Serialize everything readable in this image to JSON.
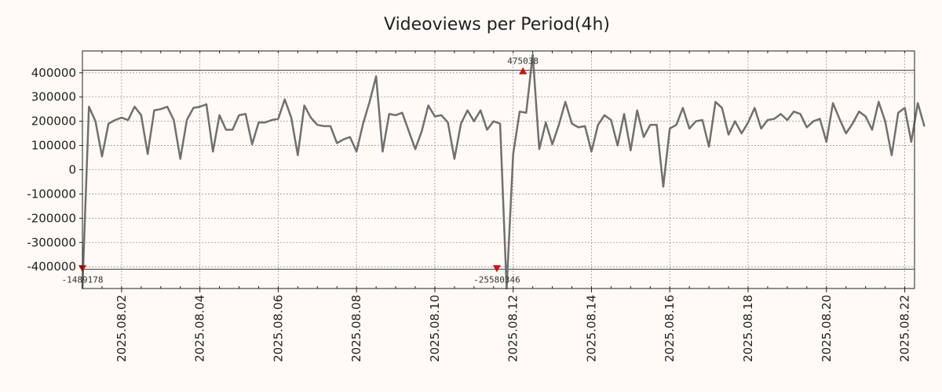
{
  "chart_data": {
    "type": "line",
    "title": "Videoviews per Period(4h)",
    "xlabel": "",
    "ylabel": "",
    "x_range": [
      "2025-08-01",
      "2025-08-22 06:00"
    ],
    "x_ticks": [
      "2025.08.02",
      "2025.08.04",
      "2025.08.06",
      "2025.08.08",
      "2025.08.10",
      "2025.08.12",
      "2025.08.14",
      "2025.08.16",
      "2025.08.18",
      "2025.08.20",
      "2025.08.22"
    ],
    "y_display_range": [
      -490000,
      490000
    ],
    "y_ticks": [
      -400000,
      -300000,
      -200000,
      -100000,
      0,
      100000,
      200000,
      300000,
      400000
    ],
    "y_tick_labels": [
      "-400000",
      "-300000",
      "-200000",
      "-100000",
      "0",
      "100000",
      "200000",
      "300000",
      "400000"
    ],
    "grid": true,
    "reference_lines": [
      410000,
      -410000
    ],
    "annotations": [
      {
        "label": "-1489178",
        "x": "2025-08-01 00:00",
        "y": -1489178,
        "direction": "down"
      },
      {
        "label": "-25580346",
        "x": "2025-08-11 14:00",
        "y": -25580346,
        "direction": "down"
      },
      {
        "label": "475038",
        "x": "2025-08-12 06:00",
        "y": 475038,
        "direction": "up"
      }
    ],
    "series": [
      {
        "color": "#707070",
        "points": [
          [
            "2025-08-01 00:00",
            -1489178
          ],
          [
            "2025-08-01 04:00",
            260000
          ],
          [
            "2025-08-01 08:00",
            200000
          ],
          [
            "2025-08-01 12:00",
            55000
          ],
          [
            "2025-08-01 16:00",
            190000
          ],
          [
            "2025-08-01 20:00",
            205000
          ],
          [
            "2025-08-02 00:00",
            215000
          ],
          [
            "2025-08-02 04:00",
            205000
          ],
          [
            "2025-08-02 08:00",
            260000
          ],
          [
            "2025-08-02 12:00",
            225000
          ],
          [
            "2025-08-02 16:00",
            65000
          ],
          [
            "2025-08-02 20:00",
            245000
          ],
          [
            "2025-08-03 00:00",
            250000
          ],
          [
            "2025-08-03 04:00",
            260000
          ],
          [
            "2025-08-03 08:00",
            205000
          ],
          [
            "2025-08-03 12:00",
            45000
          ],
          [
            "2025-08-03 16:00",
            205000
          ],
          [
            "2025-08-03 20:00",
            255000
          ],
          [
            "2025-08-04 00:00",
            260000
          ],
          [
            "2025-08-04 04:00",
            270000
          ],
          [
            "2025-08-04 08:00",
            75000
          ],
          [
            "2025-08-04 12:00",
            225000
          ],
          [
            "2025-08-04 16:00",
            165000
          ],
          [
            "2025-08-04 20:00",
            165000
          ],
          [
            "2025-08-05 00:00",
            225000
          ],
          [
            "2025-08-05 04:00",
            230000
          ],
          [
            "2025-08-05 08:00",
            105000
          ],
          [
            "2025-08-05 12:00",
            195000
          ],
          [
            "2025-08-05 16:00",
            195000
          ],
          [
            "2025-08-05 20:00",
            205000
          ],
          [
            "2025-08-06 00:00",
            210000
          ],
          [
            "2025-08-06 04:00",
            290000
          ],
          [
            "2025-08-06 08:00",
            215000
          ],
          [
            "2025-08-06 12:00",
            60000
          ],
          [
            "2025-08-06 16:00",
            265000
          ],
          [
            "2025-08-06 20:00",
            215000
          ],
          [
            "2025-08-07 00:00",
            185000
          ],
          [
            "2025-08-07 04:00",
            180000
          ],
          [
            "2025-08-07 08:00",
            180000
          ],
          [
            "2025-08-07 12:00",
            110000
          ],
          [
            "2025-08-07 16:00",
            125000
          ],
          [
            "2025-08-07 20:00",
            135000
          ],
          [
            "2025-08-08 00:00",
            75000
          ],
          [
            "2025-08-08 04:00",
            190000
          ],
          [
            "2025-08-08 08:00",
            280000
          ],
          [
            "2025-08-08 12:00",
            385000
          ],
          [
            "2025-08-08 16:00",
            75000
          ],
          [
            "2025-08-08 20:00",
            230000
          ],
          [
            "2025-08-09 00:00",
            225000
          ],
          [
            "2025-08-09 04:00",
            235000
          ],
          [
            "2025-08-09 08:00",
            160000
          ],
          [
            "2025-08-09 12:00",
            85000
          ],
          [
            "2025-08-09 16:00",
            160000
          ],
          [
            "2025-08-09 20:00",
            265000
          ],
          [
            "2025-08-10 00:00",
            220000
          ],
          [
            "2025-08-10 04:00",
            225000
          ],
          [
            "2025-08-10 08:00",
            195000
          ],
          [
            "2025-08-10 12:00",
            45000
          ],
          [
            "2025-08-10 16:00",
            190000
          ],
          [
            "2025-08-10 20:00",
            245000
          ],
          [
            "2025-08-11 00:00",
            200000
          ],
          [
            "2025-08-11 04:00",
            245000
          ],
          [
            "2025-08-11 08:00",
            165000
          ],
          [
            "2025-08-11 12:00",
            200000
          ],
          [
            "2025-08-11 16:00",
            190000
          ],
          [
            "2025-08-11 20:00",
            -25580346
          ],
          [
            "2025-08-12 00:00",
            65000
          ],
          [
            "2025-08-12 04:00",
            240000
          ],
          [
            "2025-08-12 08:00",
            235000
          ],
          [
            "2025-08-12 12:00",
            475038
          ],
          [
            "2025-08-12 16:00",
            85000
          ],
          [
            "2025-08-12 20:00",
            195000
          ],
          [
            "2025-08-13 00:00",
            105000
          ],
          [
            "2025-08-13 04:00",
            185000
          ],
          [
            "2025-08-13 08:00",
            280000
          ],
          [
            "2025-08-13 12:00",
            190000
          ],
          [
            "2025-08-13 16:00",
            175000
          ],
          [
            "2025-08-13 20:00",
            180000
          ],
          [
            "2025-08-14 00:00",
            75000
          ],
          [
            "2025-08-14 04:00",
            185000
          ],
          [
            "2025-08-14 08:00",
            225000
          ],
          [
            "2025-08-14 12:00",
            205000
          ],
          [
            "2025-08-14 16:00",
            100000
          ],
          [
            "2025-08-14 20:00",
            230000
          ],
          [
            "2025-08-15 00:00",
            80000
          ],
          [
            "2025-08-15 04:00",
            245000
          ],
          [
            "2025-08-15 08:00",
            135000
          ],
          [
            "2025-08-15 12:00",
            185000
          ],
          [
            "2025-08-15 16:00",
            185000
          ],
          [
            "2025-08-15 20:00",
            -70000
          ],
          [
            "2025-08-16 00:00",
            170000
          ],
          [
            "2025-08-16 04:00",
            185000
          ],
          [
            "2025-08-16 08:00",
            255000
          ],
          [
            "2025-08-16 12:00",
            170000
          ],
          [
            "2025-08-16 16:00",
            200000
          ],
          [
            "2025-08-16 20:00",
            205000
          ],
          [
            "2025-08-17 00:00",
            95000
          ],
          [
            "2025-08-17 04:00",
            280000
          ],
          [
            "2025-08-17 08:00",
            255000
          ],
          [
            "2025-08-17 12:00",
            145000
          ],
          [
            "2025-08-17 16:00",
            200000
          ],
          [
            "2025-08-17 20:00",
            150000
          ],
          [
            "2025-08-18 00:00",
            195000
          ],
          [
            "2025-08-18 04:00",
            255000
          ],
          [
            "2025-08-18 08:00",
            170000
          ],
          [
            "2025-08-18 12:00",
            205000
          ],
          [
            "2025-08-18 16:00",
            210000
          ],
          [
            "2025-08-18 20:00",
            230000
          ],
          [
            "2025-08-19 00:00",
            205000
          ],
          [
            "2025-08-19 04:00",
            240000
          ],
          [
            "2025-08-19 08:00",
            230000
          ],
          [
            "2025-08-19 12:00",
            175000
          ],
          [
            "2025-08-19 16:00",
            200000
          ],
          [
            "2025-08-19 20:00",
            210000
          ],
          [
            "2025-08-20 00:00",
            115000
          ],
          [
            "2025-08-20 04:00",
            275000
          ],
          [
            "2025-08-20 08:00",
            210000
          ],
          [
            "2025-08-20 12:00",
            150000
          ],
          [
            "2025-08-20 16:00",
            190000
          ],
          [
            "2025-08-20 20:00",
            240000
          ],
          [
            "2025-08-21 00:00",
            220000
          ],
          [
            "2025-08-21 04:00",
            165000
          ],
          [
            "2025-08-21 08:00",
            280000
          ],
          [
            "2025-08-21 12:00",
            200000
          ],
          [
            "2025-08-21 16:00",
            60000
          ],
          [
            "2025-08-21 20:00",
            235000
          ],
          [
            "2025-08-22 00:00",
            255000
          ],
          [
            "2025-08-22 04:00",
            115000
          ],
          [
            "2025-08-22 08:00",
            275000
          ],
          [
            "2025-08-22 12:00",
            180000
          ]
        ]
      }
    ]
  }
}
